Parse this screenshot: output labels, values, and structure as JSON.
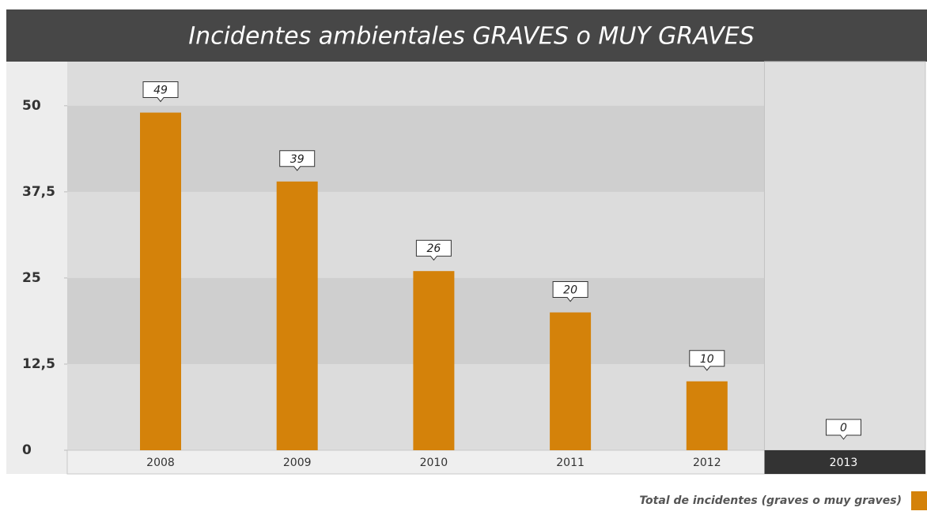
{
  "chart_data": {
    "type": "bar",
    "title": "Incidentes ambientales GRAVES o MUY GRAVES",
    "categories": [
      "2008",
      "2009",
      "2010",
      "2011",
      "2012",
      "2013"
    ],
    "series": [
      {
        "name": "Total de incidentes (graves o muy graves)",
        "color": "#d4820a",
        "values": [
          49,
          39,
          26,
          20,
          10,
          0
        ]
      }
    ],
    "ylim": [
      0,
      56.4
    ],
    "yticks": [
      0,
      {
        "value": 12.5,
        "label": "12,5"
      },
      25,
      {
        "value": 37.5,
        "label": "37,5"
      },
      50
    ],
    "highlight_index": 5,
    "legend": "bottom-right"
  }
}
